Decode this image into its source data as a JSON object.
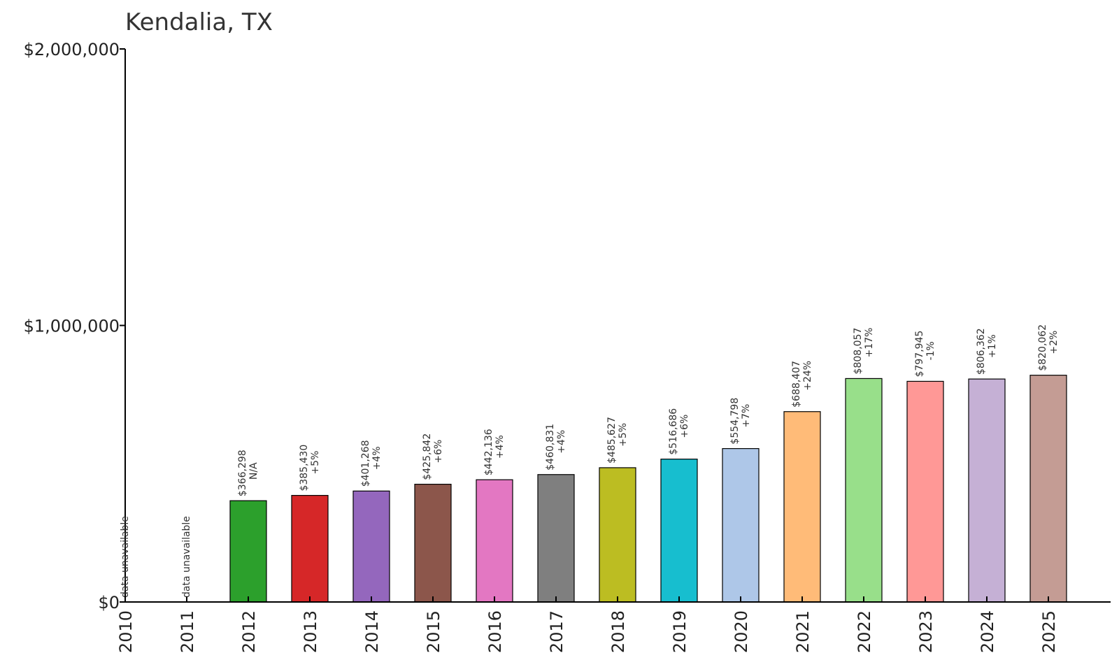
{
  "chart_data": {
    "type": "bar",
    "title": "Kendalia, TX",
    "xlabel": "",
    "ylabel": "",
    "ylim": [
      0,
      2000000
    ],
    "yticks": [
      {
        "value": 0,
        "label": "$0"
      },
      {
        "value": 1000000,
        "label": "$1,000,000"
      },
      {
        "value": 2000000,
        "label": "$2,000,000"
      }
    ],
    "grid": false,
    "legend": "none",
    "categories": [
      "2010",
      "2011",
      "2012",
      "2013",
      "2014",
      "2015",
      "2016",
      "2017",
      "2018",
      "2019",
      "2020",
      "2021",
      "2022",
      "2023",
      "2024",
      "2025"
    ],
    "values": [
      null,
      null,
      366298,
      385430,
      401268,
      425842,
      442136,
      460831,
      485627,
      516686,
      554798,
      688407,
      808057,
      797945,
      806362,
      820062
    ],
    "value_labels": [
      "",
      "",
      "$366,298",
      "$385,430",
      "$401,268",
      "$425,842",
      "$442,136",
      "$460,831",
      "$485,627",
      "$516,686",
      "$554,798",
      "$688,407",
      "$808,057",
      "$797,945",
      "$806,362",
      "$820,062"
    ],
    "change_labels": [
      "",
      "",
      "N/A",
      "+5%",
      "+4%",
      "+6%",
      "+4%",
      "+4%",
      "+5%",
      "+6%",
      "+7%",
      "+24%",
      "+17%",
      "-1%",
      "+1%",
      "+2%"
    ],
    "missing_label": "data unavailable",
    "colors": [
      "#1f77b4",
      "#ff7f0e",
      "#2ca02c",
      "#d62728",
      "#9467bd",
      "#8c564b",
      "#e377c2",
      "#7f7f7f",
      "#bcbd22",
      "#17becf",
      "#aec7e8",
      "#ffbb78",
      "#98df8a",
      "#ff9896",
      "#c5b0d5",
      "#c49c94"
    ]
  }
}
